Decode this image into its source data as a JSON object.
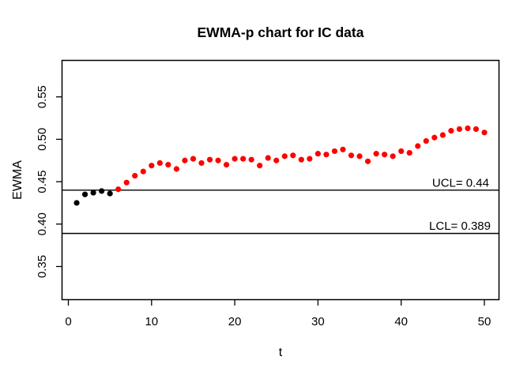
{
  "chart_data": {
    "type": "scatter",
    "title": "EWMA-p chart for IC data",
    "xlabel": "t",
    "ylabel": "EWMA",
    "xlim": [
      0,
      52
    ],
    "ylim": [
      0.31,
      0.59
    ],
    "grid": false,
    "legend": null,
    "x_ticks": [
      {
        "v": 0,
        "label": "0"
      },
      {
        "v": 10,
        "label": "10"
      },
      {
        "v": 20,
        "label": "20"
      },
      {
        "v": 30,
        "label": "30"
      },
      {
        "v": 40,
        "label": "40"
      },
      {
        "v": 50,
        "label": "50"
      }
    ],
    "y_ticks": [
      {
        "v": 0.35,
        "label": "0.35"
      },
      {
        "v": 0.4,
        "label": "0.40"
      },
      {
        "v": 0.45,
        "label": "0.45"
      },
      {
        "v": 0.5,
        "label": "0.50"
      },
      {
        "v": 0.55,
        "label": "0.55"
      }
    ],
    "control_limits": {
      "ucl": {
        "value": 0.44,
        "label": "UCL= 0.44"
      },
      "lcl": {
        "value": 0.389,
        "label": "LCL= 0.389"
      }
    },
    "series": [
      {
        "name": "in-control-points",
        "color": "#000000",
        "marker": "filled-circle",
        "t_start": 1,
        "values": [
          0.425,
          0.435,
          0.437,
          0.439,
          0.436
        ]
      },
      {
        "name": "out-of-control-points",
        "color": "#ff0000",
        "marker": "filled-circle",
        "t_start": 6,
        "values": [
          0.441,
          0.449,
          0.457,
          0.462,
          0.469,
          0.472,
          0.47,
          0.465,
          0.475,
          0.477,
          0.472,
          0.476,
          0.475,
          0.47,
          0.477,
          0.477,
          0.476,
          0.469,
          0.478,
          0.475,
          0.48,
          0.481,
          0.476,
          0.477,
          0.483,
          0.482,
          0.486,
          0.488,
          0.481,
          0.48,
          0.474,
          0.483,
          0.482,
          0.48,
          0.486,
          0.484,
          0.492,
          0.498,
          0.502,
          0.505,
          0.51,
          0.512,
          0.513,
          0.512,
          0.508
        ]
      }
    ]
  },
  "colors": {
    "background": "#ffffff",
    "axis": "#000000",
    "control_line": "#000000",
    "in_control_point": "#000000",
    "out_of_control_point": "#ff0000"
  }
}
